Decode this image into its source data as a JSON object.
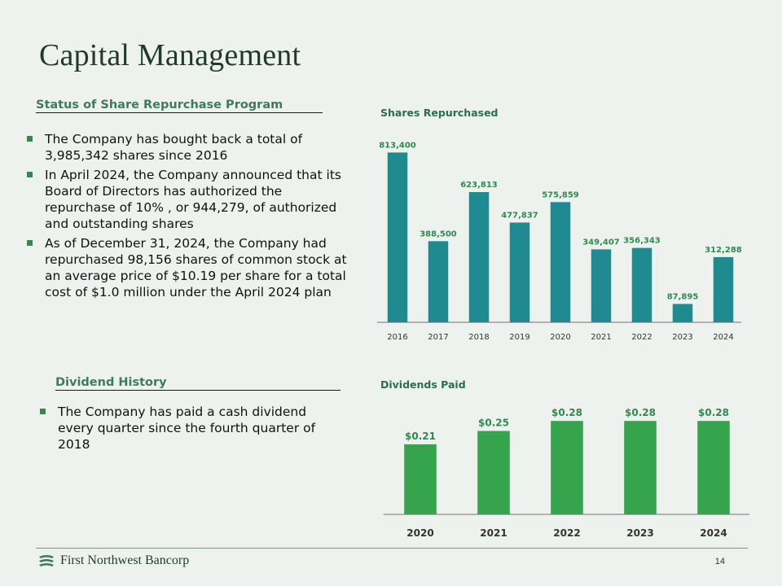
{
  "title": "Capital Management",
  "repurchase": {
    "heading": "Status of Share Repurchase Program",
    "bullets": [
      "The Company has bought back a total of 3,985,342 shares since 2016",
      "In April 2024, the Company announced that its Board of Directors has authorized the repurchase of 10% , or 944,279, of authorized and outstanding shares",
      "As of December 31, 2024, the Company had repurchased 98,156 shares of common stock at an average price of  $10.19 per share for a total cost of $1.0 million under the April 2024 plan"
    ]
  },
  "dividend": {
    "heading": "Dividend History",
    "bullets": [
      "The Company has paid a cash dividend every quarter since the fourth quarter of 2018"
    ]
  },
  "chart_data": [
    {
      "type": "bar",
      "title": "Shares Repurchased",
      "categories": [
        "2016",
        "2017",
        "2018",
        "2019",
        "2020",
        "2021",
        "2022",
        "2023",
        "2024"
      ],
      "values": [
        813400,
        388500,
        623813,
        477837,
        575859,
        349407,
        356343,
        87895,
        312288
      ],
      "labels": [
        "813,400",
        "388,500",
        "623,813",
        "477,837",
        "575,859",
        "349,407",
        "356,343",
        "87,895",
        "312,288"
      ],
      "ylim": [
        0,
        850000
      ],
      "color": "#1f8a8f",
      "grid": false
    },
    {
      "type": "bar",
      "title": "Dividends Paid",
      "categories": [
        "2020",
        "2021",
        "2022",
        "2023",
        "2024"
      ],
      "values": [
        0.21,
        0.25,
        0.28,
        0.28,
        0.28
      ],
      "labels": [
        "$0.21",
        "$0.25",
        "$0.28",
        "$0.28",
        "$0.28"
      ],
      "ylim": [
        0,
        0.3
      ],
      "color": "#35a44c",
      "grid": false
    }
  ],
  "footer": {
    "logo_text": "First Northwest Bancorp",
    "page_number": "14"
  }
}
